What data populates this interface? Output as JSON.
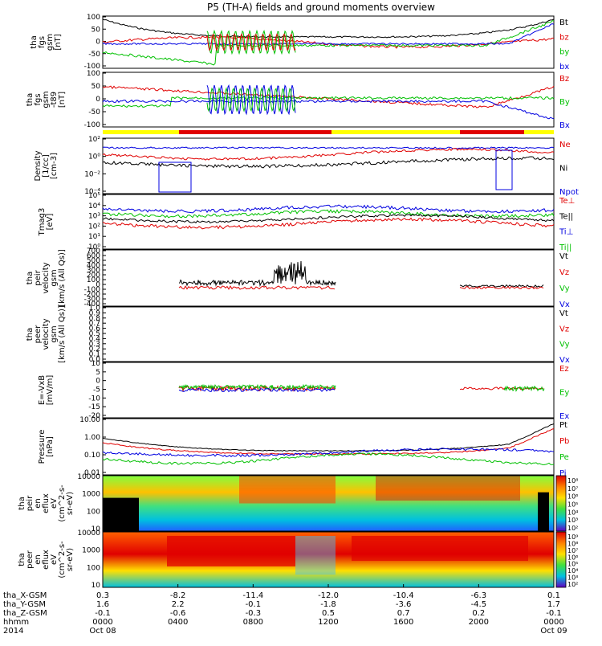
{
  "title": "P5 (TH-A) fields and ground moments overview",
  "colors": {
    "black": "#000000",
    "red": "#e00000",
    "green": "#00c000",
    "blue": "#0000e0",
    "yellow": "#ffff00",
    "barred": "#e00000"
  },
  "panels": [
    {
      "id": "fgs",
      "ylabel": [
        "tha",
        "fgs",
        "gsm",
        "[nT]"
      ],
      "ylim": [
        -100,
        100
      ],
      "ticks": [
        "100",
        "50",
        "0",
        "-50",
        "-100"
      ],
      "legend": [
        {
          "name": "Bt",
          "color": "#000000"
        },
        {
          "name": "bz",
          "color": "#e00000"
        },
        {
          "name": "by",
          "color": "#00c000"
        },
        {
          "name": "bx",
          "color": "#0000e0"
        }
      ]
    },
    {
      "id": "fgs_det",
      "ylabel": [
        "tha",
        "fgs",
        "gsm",
        "-t89",
        "[nT]"
      ],
      "ylim": [
        -120,
        100
      ],
      "ticks": [
        "100",
        "50",
        "0",
        "-50",
        "-100"
      ],
      "legend": [
        {
          "name": "Bz",
          "color": "#e00000"
        },
        {
          "name": "By",
          "color": "#00c000"
        },
        {
          "name": "Bx",
          "color": "#0000e0"
        }
      ]
    },
    {
      "id": "density",
      "ylabel": [
        "Density",
        "[1/cc]",
        "[cm-3]"
      ],
      "ticks": [
        "10²",
        "10⁰",
        "10⁻²",
        "10⁻⁴"
      ],
      "scale": "log",
      "legend": [
        {
          "name": "Ne",
          "color": "#e00000"
        },
        {
          "name": "Ni",
          "color": "#000000"
        },
        {
          "name": "Npot",
          "color": "#0000e0"
        }
      ]
    },
    {
      "id": "temp",
      "ylabel": [
        "Tmag3",
        "[eV]"
      ],
      "ticks": [
        "10⁵",
        "10⁴",
        "10³",
        "10²",
        "10¹",
        "10⁰"
      ],
      "scale": "log",
      "legend": [
        {
          "name": "Te⊥",
          "color": "#e00000"
        },
        {
          "name": "Te||",
          "color": "#000000"
        },
        {
          "name": "Ti⊥",
          "color": "#0000e0"
        },
        {
          "name": "Ti||",
          "color": "#00c000"
        }
      ]
    },
    {
      "id": "peir_vel",
      "ylabel": [
        "tha",
        "peir",
        "velocity",
        "gsm",
        "[km/s (All Qs)]"
      ],
      "ylim": [
        -400,
        800
      ],
      "ticks": [
        "700",
        "600",
        "500",
        "400",
        "300",
        "200",
        "100",
        "0",
        "-100",
        "-200",
        "-300",
        "-400"
      ],
      "legend": [
        {
          "name": "Vt",
          "color": "#000000"
        },
        {
          "name": "Vz",
          "color": "#e00000"
        },
        {
          "name": "Vy",
          "color": "#00c000"
        },
        {
          "name": "Vx",
          "color": "#0000e0"
        }
      ]
    },
    {
      "id": "peer_vel",
      "ylabel": [
        "tha",
        "peer",
        "velocity",
        "gsm",
        "[km/s (All Qs)]"
      ],
      "ylim": [
        0,
        1
      ],
      "ticks": [
        "1.0",
        "0.9",
        "0.8",
        "0.7",
        "0.6",
        "0.5",
        "0.4",
        "0.3",
        "0.2",
        "0.1",
        "0.0"
      ],
      "legend": [
        {
          "name": "Vt",
          "color": "#000000"
        },
        {
          "name": "Vz",
          "color": "#e00000"
        },
        {
          "name": "Vy",
          "color": "#00c000"
        },
        {
          "name": "Vx",
          "color": "#0000e0"
        }
      ]
    },
    {
      "id": "efield",
      "ylabel": [
        "E=-VxB",
        "[mV/m]"
      ],
      "ylim": [
        -20,
        10
      ],
      "ticks": [
        "10",
        "5",
        "0",
        "-5",
        "-10",
        "-15",
        "-20"
      ],
      "legend": [
        {
          "name": "Ez",
          "color": "#e00000"
        },
        {
          "name": "Ey",
          "color": "#00c000"
        },
        {
          "name": "Ex",
          "color": "#0000e0"
        }
      ]
    },
    {
      "id": "pressure",
      "ylabel": [
        "Pressure",
        "[nPa]"
      ],
      "ticks": [
        "10.00",
        "1.00",
        "0.10",
        "0.01"
      ],
      "scale": "log",
      "legend": [
        {
          "name": "Pt",
          "color": "#000000"
        },
        {
          "name": "Pb",
          "color": "#e00000"
        },
        {
          "name": "Pe",
          "color": "#00c000"
        },
        {
          "name": "Pi",
          "color": "#0000e0"
        }
      ]
    },
    {
      "id": "peir_spec",
      "ylabel": [
        "tha",
        "peir",
        "en",
        "eflux",
        "eV",
        "(cm^2-s-",
        "sr-eV)"
      ],
      "ticks": [
        "10000",
        "1000",
        "100",
        "10"
      ],
      "colorbar_ticks": [
        "10⁸",
        "10⁷",
        "10⁶",
        "10⁵",
        "10⁴",
        "10³",
        "10²"
      ]
    },
    {
      "id": "peer_spec",
      "ylabel": [
        "tha",
        "peer",
        "en",
        "eflux",
        "eV",
        "(cm^2-s-",
        "sr-eV)"
      ],
      "ticks": [
        "10000",
        "1000",
        "100",
        "10"
      ],
      "colorbar_ticks": [
        "10⁹",
        "10⁸",
        "10⁷",
        "10⁶",
        "10⁵",
        "10⁴",
        "10³",
        "10²"
      ]
    }
  ],
  "colorbar_label": "[eV/(cm^2-s[ster-Sa](sr))-eV)] (All Qs)]",
  "colorbar_label_full": "[eV/(cm^2-s-sr-eV)]",
  "xaxis": {
    "row_labels": [
      "tha_X-GSM",
      "tha_Y-GSM",
      "tha_Z-GSM",
      "hhmm",
      "2014"
    ],
    "columns": [
      [
        "0.3",
        "1.6",
        "-0.1",
        "0000",
        "Oct 08"
      ],
      [
        "-8.2",
        "2.2",
        "-0.6",
        "0400",
        ""
      ],
      [
        "-11.4",
        "-0.1",
        "-0.3",
        "0800",
        ""
      ],
      [
        "-12.0",
        "-1.8",
        "0.5",
        "1200",
        ""
      ],
      [
        "-10.4",
        "-3.6",
        "0.7",
        "1600",
        ""
      ],
      [
        "-6.3",
        "-4.5",
        "0.2",
        "2000",
        ""
      ],
      [
        "0.1",
        "1.7",
        "-0.1",
        "0000",
        "Oct 09"
      ]
    ]
  },
  "chart_data": {
    "type": "line",
    "title": "P5 (TH-A) fields and ground moments overview",
    "x": [
      "2014-10-08 00:00",
      "04:00",
      "08:00",
      "12:00",
      "16:00",
      "20:00",
      "2014-10-09 00:00"
    ],
    "series": [
      {
        "name": "Bt",
        "values": [
          100,
          20,
          12,
          8,
          12,
          25,
          100
        ]
      },
      {
        "name": "bz",
        "values": [
          80,
          5,
          0,
          3,
          0,
          5,
          100
        ]
      },
      {
        "name": "by",
        "values": [
          -20,
          -5,
          5,
          0,
          -5,
          10,
          100
        ]
      },
      {
        "name": "bx",
        "values": [
          -80,
          10,
          5,
          0,
          5,
          10,
          -80
        ]
      }
    ]
  }
}
